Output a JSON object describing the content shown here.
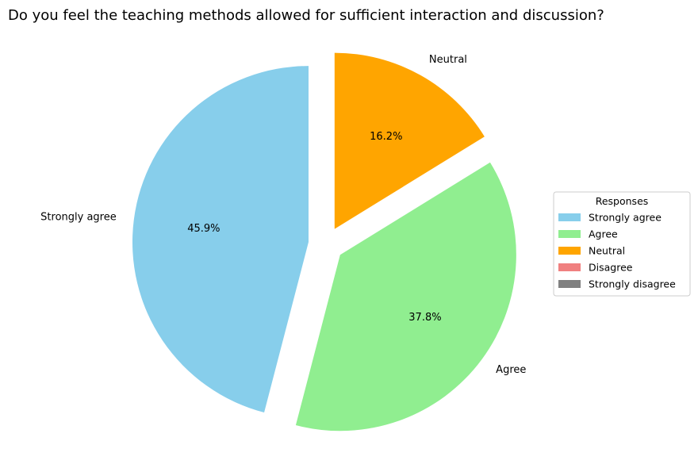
{
  "chart_data": {
    "type": "pie",
    "title": "Do you feel the teaching methods allowed for sufficient interaction and discussion?",
    "legend": {
      "title": "Responses",
      "placement": "center-right",
      "entries": [
        "Strongly agree",
        "Agree",
        "Neutral",
        "Disagree",
        "Strongly disagree"
      ]
    },
    "slices": [
      {
        "label": "Strongly agree",
        "value": 45.9,
        "pct_text": "45.9%",
        "color": "#87ceeb",
        "exploded": true
      },
      {
        "label": "Agree",
        "value": 37.8,
        "pct_text": "37.8%",
        "color": "#90ee90",
        "exploded": true
      },
      {
        "label": "Neutral",
        "value": 16.2,
        "pct_text": "16.2%",
        "color": "#ffa500",
        "exploded": true
      },
      {
        "label": "Disagree",
        "value": 0,
        "pct_text": "",
        "color": "#f08080",
        "exploded": false
      },
      {
        "label": "Strongly disagree",
        "value": 0,
        "pct_text": "",
        "color": "#808080",
        "exploded": false
      }
    ]
  }
}
